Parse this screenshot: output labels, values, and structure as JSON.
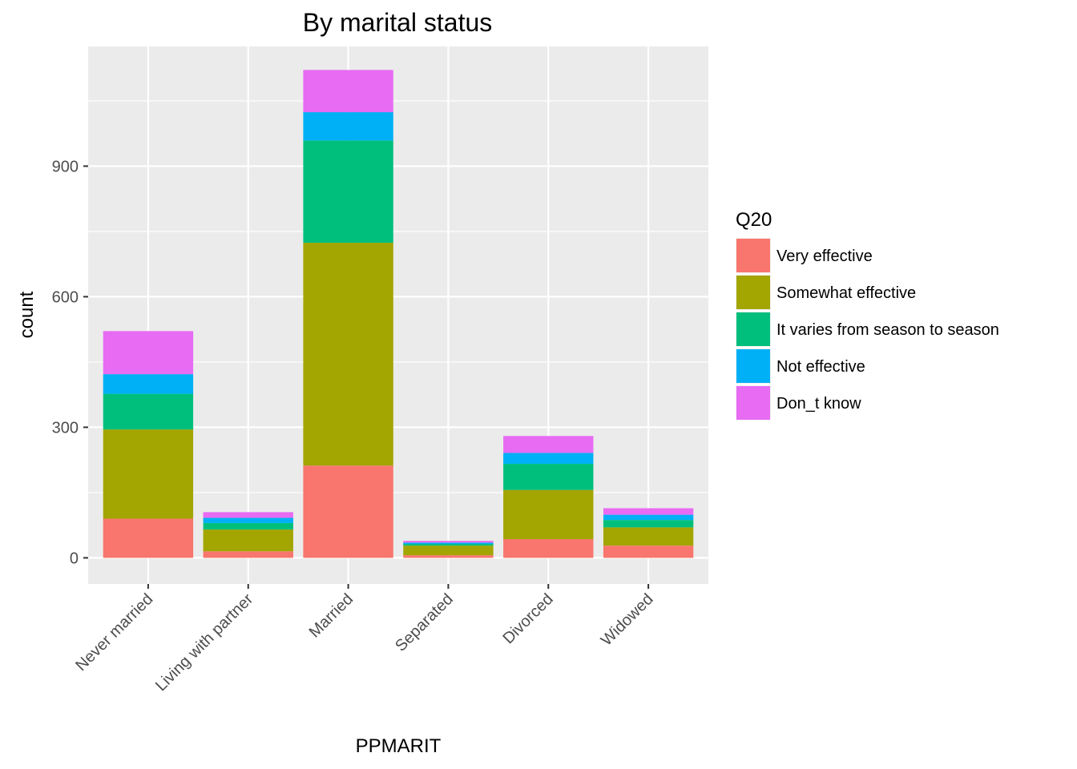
{
  "chart_data": {
    "type": "bar",
    "stacked": true,
    "title": "By marital status",
    "xlabel": "PPMARIT",
    "ylabel": "count",
    "categories": [
      "Never married",
      "Living with partner",
      "Married",
      "Separated",
      "Divorced",
      "Widowed"
    ],
    "ylim": [
      -60,
      1175
    ],
    "yticks": [
      0,
      300,
      600,
      900
    ],
    "grid": true,
    "legend": {
      "title": "Q20",
      "position": "right"
    },
    "series": [
      {
        "name": "Very effective",
        "color": "#F8766D",
        "values": [
          90,
          15,
          212,
          6,
          43,
          28
        ]
      },
      {
        "name": "Somewhat effective",
        "color": "#A3A500",
        "values": [
          205,
          50,
          512,
          22,
          113,
          42
        ]
      },
      {
        "name": "It varies from season to season",
        "color": "#00BF7D",
        "values": [
          82,
          15,
          235,
          4,
          60,
          17
        ]
      },
      {
        "name": "Not effective",
        "color": "#00B0F6",
        "values": [
          45,
          12,
          65,
          3,
          25,
          12
        ]
      },
      {
        "name": "Don_t know",
        "color": "#E76BF3",
        "values": [
          99,
          13,
          97,
          4,
          39,
          15
        ]
      }
    ]
  }
}
